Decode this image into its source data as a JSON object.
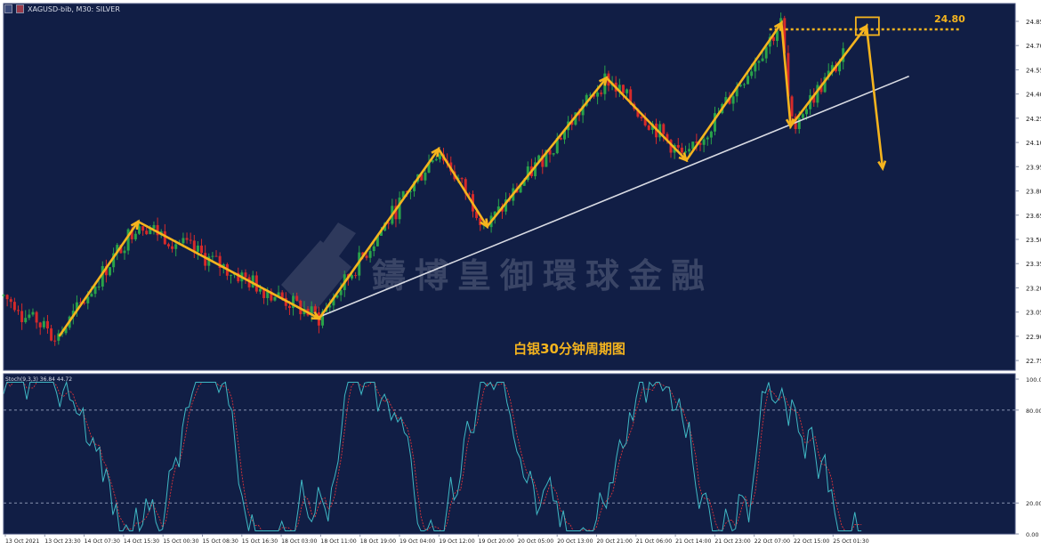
{
  "header": {
    "symbol": "XAGUSD-bib, M30: SILVER"
  },
  "oscillator": {
    "label": "Stoch(9,3,3) 36.84 44.72",
    "ticks": [
      "100.00",
      "80.00",
      "20.00",
      "0.00"
    ]
  },
  "chart_data": {
    "type": "line",
    "x_labels": [
      "13 Oct 2021",
      "13 Oct 23:30",
      "14 Oct 07:30",
      "14 Oct 15:30",
      "15 Oct 00:30",
      "15 Oct 08:30",
      "15 Oct 16:30",
      "18 Oct 03:00",
      "18 Oct 11:00",
      "18 Oct 19:00",
      "19 Oct 04:00",
      "19 Oct 12:00",
      "19 Oct 20:00",
      "20 Oct 05:00",
      "20 Oct 13:00",
      "20 Oct 21:00",
      "21 Oct 06:00",
      "21 Oct 14:00",
      "21 Oct 23:00",
      "22 Oct 07:00",
      "22 Oct 15:00",
      "25 Oct 01:30"
    ],
    "y_ticks": [
      "24.85",
      "24.70",
      "24.55",
      "24.40",
      "24.25",
      "24.10",
      "23.95",
      "23.80",
      "23.65",
      "23.50",
      "23.35",
      "23.20",
      "23.05",
      "22.90",
      "22.75"
    ],
    "ylim": [
      22.69,
      24.96
    ],
    "price_swing_path": [
      {
        "t": 0.055,
        "v": 22.9
      },
      {
        "t": 0.133,
        "v": 23.61
      },
      {
        "t": 0.312,
        "v": 23.01
      },
      {
        "t": 0.43,
        "v": 24.06
      },
      {
        "t": 0.478,
        "v": 23.58
      },
      {
        "t": 0.596,
        "v": 24.5
      },
      {
        "t": 0.675,
        "v": 23.99
      },
      {
        "t": 0.769,
        "v": 24.84
      },
      {
        "t": 0.778,
        "v": 24.2
      },
      {
        "t": 0.853,
        "v": 24.82
      },
      {
        "t": 0.869,
        "v": 23.94
      }
    ],
    "trendline": [
      {
        "t": 0.308,
        "v": 23.01
      },
      {
        "t": 0.895,
        "v": 24.51
      }
    ],
    "resistance": {
      "value": 24.8,
      "label": "24.80"
    },
    "annotation": "白银30分钟周期图",
    "watermark": "鑄博皇御環球金融",
    "stoch": {
      "k": 36.84,
      "d": 44.72,
      "levels": [
        80,
        20
      ],
      "ylim": [
        0,
        100
      ]
    }
  },
  "colors": {
    "background": "#111e45",
    "grid": "#2a3760",
    "axis_text": "#e6e9f2",
    "arrow": "#f5b41e",
    "trendline": "#d9dbe3",
    "bull": "#29a34a",
    "bear": "#d62a2a",
    "stoch_k": "#3fb8c4",
    "stoch_d": "#d9333a",
    "watermark": "#3a4566"
  }
}
